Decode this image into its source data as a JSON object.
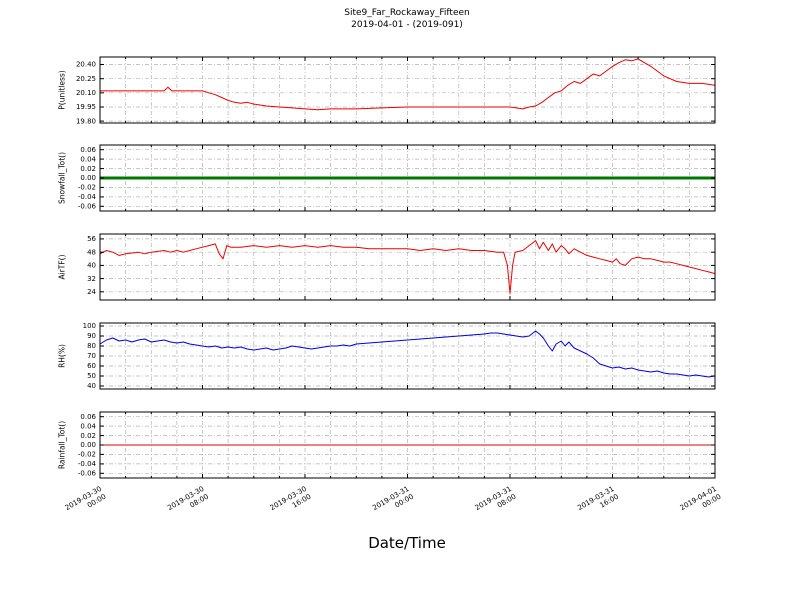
{
  "title": "Site9_Far_Rockaway_Fifteen",
  "subtitle": "2019-04-01 - (2019-091)",
  "xlabel": "Date/Time",
  "x_axis": {
    "range_hours": [
      0,
      48
    ],
    "major_tick_hours": 8,
    "minor_tick_hours": 2,
    "tick_labels": [
      [
        "2019-03-30",
        "00:00"
      ],
      [
        "2019-03-30",
        "08:00"
      ],
      [
        "2019-03-30",
        "16:00"
      ],
      [
        "2019-03-31",
        "00:00"
      ],
      [
        "2019-03-31",
        "08:00"
      ],
      [
        "2019-03-31",
        "16:00"
      ],
      [
        "2019-04-01",
        "00:00"
      ]
    ]
  },
  "grid": "dash-dot-gray",
  "chart_data": [
    {
      "type": "line",
      "ylabel": "P(unitless)",
      "color": "#ee0000",
      "line_width": 1,
      "ylim": [
        19.78,
        20.48
      ],
      "yticks": [
        19.8,
        19.95,
        20.1,
        20.25,
        20.4
      ],
      "ytick_decimals": 2,
      "x": [
        0,
        4,
        5,
        5.3,
        5.6,
        8,
        8.5,
        9,
        9.5,
        10,
        10.5,
        11,
        11.5,
        12,
        13,
        14,
        15,
        16,
        17,
        18,
        20,
        22,
        24,
        26,
        28,
        30,
        32,
        33,
        33.5,
        34,
        34.5,
        35,
        35.5,
        36,
        36.5,
        37,
        37.5,
        38,
        38.5,
        39,
        39.5,
        40,
        40.5,
        41,
        41.5,
        42,
        42.5,
        43,
        43.5,
        44,
        44.5,
        45,
        46,
        47,
        48
      ],
      "values": [
        20.12,
        20.12,
        20.12,
        20.16,
        20.12,
        20.12,
        20.1,
        20.08,
        20.05,
        20.02,
        20.0,
        19.99,
        20.0,
        19.98,
        19.96,
        19.95,
        19.94,
        19.93,
        19.92,
        19.93,
        19.93,
        19.94,
        19.95,
        19.95,
        19.95,
        19.95,
        19.95,
        19.93,
        19.95,
        19.96,
        20.0,
        20.05,
        20.1,
        20.12,
        20.18,
        20.22,
        20.2,
        20.25,
        20.3,
        20.28,
        20.33,
        20.38,
        20.42,
        20.45,
        20.44,
        20.46,
        20.42,
        20.38,
        20.33,
        20.28,
        20.25,
        20.22,
        20.2,
        20.2,
        20.18
      ]
    },
    {
      "type": "line",
      "ylabel": "Snowfall_Tot()",
      "color": "#007700",
      "line_width": 3,
      "ylim": [
        -0.07,
        0.07
      ],
      "yticks": [
        -0.06,
        -0.04,
        -0.02,
        0,
        0.02,
        0.04,
        0.06
      ],
      "ytick_decimals": 2,
      "x": [
        0,
        48
      ],
      "values": [
        0,
        0
      ]
    },
    {
      "type": "line",
      "ylabel": "AirTF()",
      "color": "#ee0000",
      "line_width": 1,
      "ylim": [
        19,
        59
      ],
      "yticks": [
        24,
        32,
        40,
        48,
        56
      ],
      "ytick_decimals": 0,
      "x": [
        0,
        0.5,
        1,
        1.5,
        2,
        3,
        3.5,
        4,
        5,
        5.5,
        6,
        6.5,
        7,
        7.5,
        8,
        8.5,
        9,
        9.3,
        9.6,
        9.9,
        10.2,
        11,
        12,
        13,
        14,
        15,
        16,
        17,
        18,
        19,
        20,
        21,
        22,
        23,
        24,
        25,
        26,
        27,
        28,
        29,
        30,
        31,
        31.5,
        31.8,
        32,
        32.2,
        32.4,
        33,
        33.5,
        34,
        34.3,
        34.6,
        35,
        35.3,
        35.6,
        36,
        36.3,
        36.6,
        37,
        37.5,
        38,
        38.5,
        39,
        39.5,
        40,
        40.3,
        40.6,
        41,
        41.5,
        42,
        42.5,
        43,
        43.5,
        44,
        44.5,
        45,
        45.5,
        46,
        46.5,
        47,
        47.5,
        48
      ],
      "values": [
        47,
        49,
        48,
        46,
        47,
        48,
        47,
        48,
        49,
        48,
        49,
        48,
        49,
        50,
        51,
        52,
        53,
        47,
        44,
        52,
        51,
        51,
        52,
        51,
        52,
        51,
        52,
        51,
        52,
        51,
        51,
        50,
        50,
        50,
        50,
        49,
        50,
        49,
        50,
        49,
        49,
        48,
        48,
        40,
        23,
        40,
        48,
        49,
        52,
        55,
        50,
        54,
        49,
        53,
        48,
        52,
        50,
        47,
        50,
        48,
        46,
        45,
        44,
        43,
        42,
        44,
        41,
        40,
        44,
        45,
        44,
        44,
        43,
        42,
        42,
        41,
        40,
        39,
        38,
        37,
        36,
        35
      ]
    },
    {
      "type": "line",
      "ylabel": "RH(%)",
      "color": "#0000dd",
      "line_width": 1,
      "ylim": [
        37,
        103
      ],
      "yticks": [
        40,
        50,
        60,
        70,
        80,
        90,
        100
      ],
      "ytick_decimals": 0,
      "x": [
        0,
        0.5,
        1,
        1.5,
        2,
        2.5,
        3,
        3.5,
        4,
        4.5,
        5,
        5.5,
        6,
        6.5,
        7,
        7.5,
        8,
        8.5,
        9,
        9.5,
        10,
        10.5,
        11,
        11.5,
        12,
        12.5,
        13,
        13.5,
        14,
        14.5,
        15,
        15.5,
        16,
        16.5,
        17,
        17.5,
        18,
        18.5,
        19,
        19.5,
        20,
        21,
        22,
        23,
        24,
        25,
        26,
        27,
        28,
        29,
        30,
        30.5,
        31,
        31.5,
        32,
        32.5,
        33,
        33.5,
        34,
        34.3,
        34.6,
        35,
        35.3,
        35.6,
        36,
        36.3,
        36.6,
        37,
        37.5,
        38,
        38.5,
        39,
        39.5,
        40,
        40.5,
        41,
        41.5,
        42,
        42.5,
        43,
        43.5,
        44,
        44.5,
        45,
        45.5,
        46,
        46.5,
        47,
        47.5,
        48
      ],
      "values": [
        82,
        86,
        88,
        85,
        86,
        84,
        86,
        87,
        84,
        85,
        86,
        84,
        83,
        84,
        82,
        81,
        80,
        79,
        80,
        78,
        79,
        78,
        79,
        77,
        76,
        77,
        78,
        76,
        77,
        78,
        80,
        79,
        78,
        77,
        78,
        79,
        80,
        80,
        81,
        80,
        82,
        83,
        84,
        85,
        86,
        87,
        88,
        89,
        90,
        91,
        92,
        93,
        93,
        92,
        91,
        90,
        89,
        90,
        95,
        92,
        88,
        80,
        75,
        82,
        85,
        80,
        84,
        78,
        75,
        72,
        68,
        62,
        60,
        58,
        59,
        57,
        58,
        56,
        55,
        54,
        55,
        53,
        52,
        52,
        51,
        50,
        51,
        50,
        49,
        50
      ]
    },
    {
      "type": "line",
      "ylabel": "Rainfall_Tot()",
      "color": "#ee0000",
      "line_width": 1,
      "ylim": [
        -0.07,
        0.07
      ],
      "yticks": [
        -0.06,
        -0.04,
        -0.02,
        0,
        0.02,
        0.04,
        0.06
      ],
      "ytick_decimals": 2,
      "x": [
        0,
        48
      ],
      "values": [
        0,
        0
      ]
    }
  ]
}
